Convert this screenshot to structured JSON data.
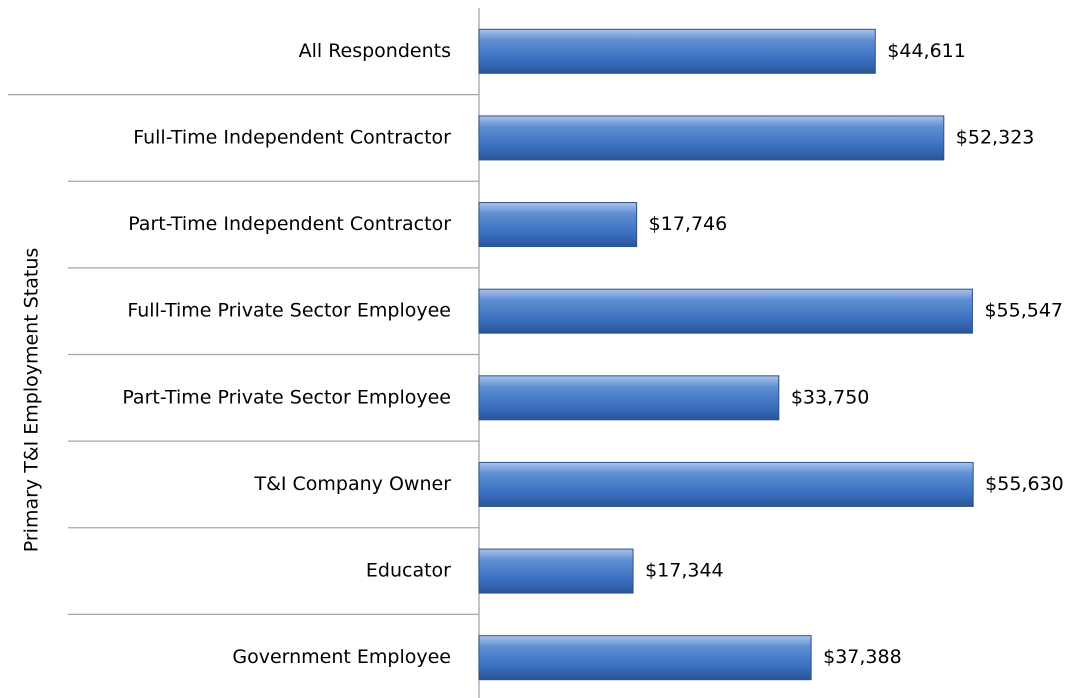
{
  "chart_data": {
    "type": "bar",
    "orientation": "horizontal",
    "y_label": "Primary T&I Employment Status",
    "categories": [
      "All Respondents",
      "Full-Time Independent Contractor",
      "Part-Time Independent Contractor",
      "Full-Time Private Sector Employee",
      "Part-Time Private Sector Employee",
      "T&I Company Owner",
      "Educator",
      "Government Employee"
    ],
    "values": [
      44611,
      52323,
      17746,
      55547,
      33750,
      55630,
      17344,
      37388
    ],
    "value_labels": [
      "$44,611",
      "$52,323",
      "$17,746",
      "$55,547",
      "$33,750",
      "$55,630",
      "$17,344",
      "$37,388"
    ],
    "color": "#4f81bd",
    "xlim": [
      0,
      60000
    ]
  }
}
